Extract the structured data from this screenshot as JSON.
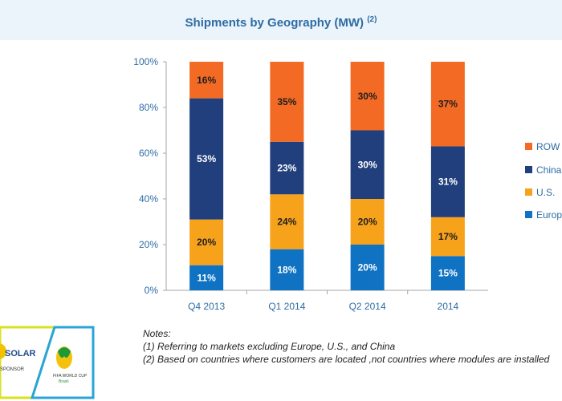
{
  "header": {
    "title": "Shipments by Geography (MW)",
    "title_note": "(2)"
  },
  "chart_data": {
    "type": "bar",
    "stacked": true,
    "categories": [
      "Q4 2013",
      "Q1 2014",
      "Q2 2014",
      "2014"
    ],
    "series": [
      {
        "name": "Europe",
        "color": "#1072c2",
        "values": [
          11,
          18,
          20,
          15
        ]
      },
      {
        "name": "U.S.",
        "color": "#f7a21b",
        "values": [
          20,
          24,
          20,
          17
        ]
      },
      {
        "name": "China",
        "color": "#203f7c",
        "values": [
          53,
          23,
          30,
          31
        ]
      },
      {
        "name": "ROW",
        "color": "#f26a23",
        "values": [
          16,
          35,
          30,
          37
        ]
      }
    ],
    "data_labels": [
      [
        "11%",
        "18%",
        "20%",
        "15%"
      ],
      [
        "20%",
        "24%",
        "20%",
        "17%"
      ],
      [
        "53%",
        "23%",
        "30%",
        "31%"
      ],
      [
        "16%",
        "35%",
        "30%",
        "37%"
      ]
    ],
    "legend_labels": [
      "ROW",
      "China",
      "U.S.",
      "Europe"
    ],
    "legend_position": "right",
    "y_ticks": [
      "0%",
      "20%",
      "40%",
      "60%",
      "80%",
      "100%"
    ],
    "ylim": [
      0,
      100
    ],
    "grid": false
  },
  "notes": {
    "heading": "Notes:",
    "items": [
      "(1)  Referring to markets excluding Europe, U.S., and China",
      "(2)  Based on countries where customers are located ,not countries where modules are installed"
    ]
  },
  "logo": {
    "brand_text": "SOLAR",
    "sponsor_text": "SPONSOR",
    "event_text": "FIFA WORLD CUP",
    "event_sub": "Brasil"
  }
}
